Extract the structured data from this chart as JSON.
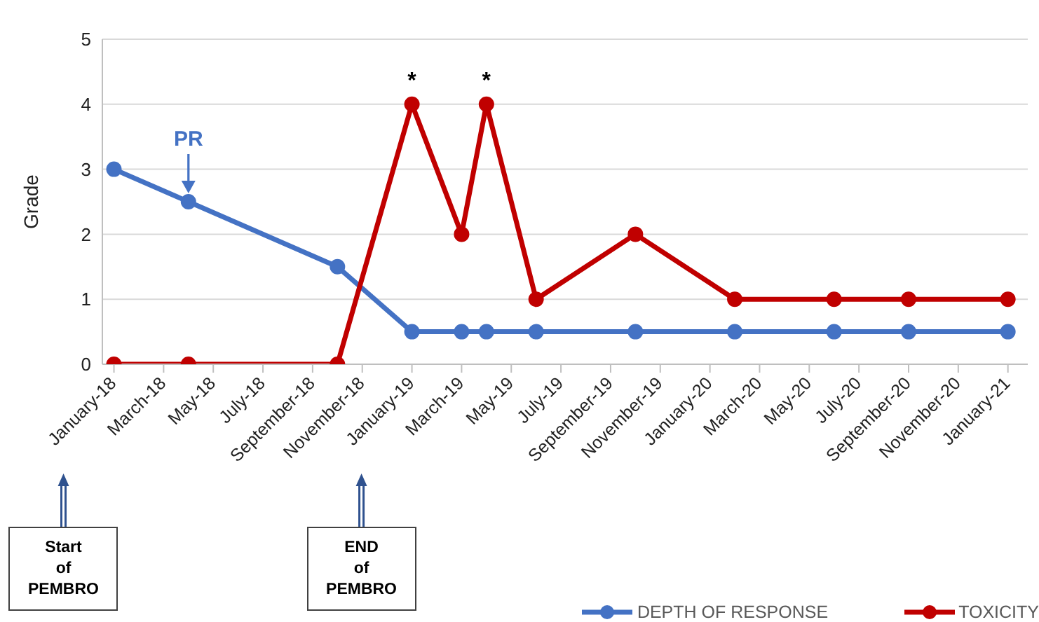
{
  "chart_data": {
    "type": "line",
    "ylabel": "Grade",
    "x": [
      "2018-01",
      "2018-04",
      "2018-10",
      "2019-01",
      "2019-03",
      "2019-04",
      "2019-06",
      "2019-10",
      "2020-02",
      "2020-06",
      "2020-09",
      "2021-01"
    ],
    "series": [
      {
        "name": "DEPTH OF RESPONSE",
        "color": "#4472c4",
        "values": [
          3,
          2.5,
          1.5,
          0.5,
          0.5,
          0.5,
          0.5,
          0.5,
          0.5,
          0.5,
          0.5,
          0.5
        ]
      },
      {
        "name": "TOXICITY",
        "color": "#c00000",
        "values": [
          0,
          0,
          0,
          4,
          2,
          4,
          1,
          2,
          1,
          1,
          1,
          1
        ]
      }
    ],
    "xlim": [
      "2017-12-17",
      "2021-01-25"
    ],
    "xticks": [
      {
        "value": "2018-01",
        "label": "January-18"
      },
      {
        "value": "2018-03",
        "label": "March-18"
      },
      {
        "value": "2018-05",
        "label": "May-18"
      },
      {
        "value": "2018-07",
        "label": "July-18"
      },
      {
        "value": "2018-09",
        "label": "September-18"
      },
      {
        "value": "2018-11",
        "label": "November-18"
      },
      {
        "value": "2019-01",
        "label": "January-19"
      },
      {
        "value": "2019-03",
        "label": "March-19"
      },
      {
        "value": "2019-05",
        "label": "May-19"
      },
      {
        "value": "2019-07",
        "label": "July-19"
      },
      {
        "value": "2019-09",
        "label": "September-19"
      },
      {
        "value": "2019-11",
        "label": "November-19"
      },
      {
        "value": "2020-01",
        "label": "January-20"
      },
      {
        "value": "2020-03",
        "label": "March-20"
      },
      {
        "value": "2020-05",
        "label": "May-20"
      },
      {
        "value": "2020-07",
        "label": "July-20"
      },
      {
        "value": "2020-09",
        "label": "September-20"
      },
      {
        "value": "2020-11",
        "label": "November-20"
      },
      {
        "value": "2021-01",
        "label": "January-21"
      }
    ],
    "ylim": [
      0,
      5
    ],
    "yticks": [
      0,
      1,
      2,
      3,
      4,
      5
    ],
    "grid": "y",
    "legend": "bottom right",
    "marker": "circle",
    "line_style": "solid",
    "annotations": [
      {
        "text": "PR",
        "x": "2018-04",
        "y": 2.5
      },
      {
        "text": "*",
        "x": "2019-01",
        "y": 4
      },
      {
        "text": "*",
        "x": "2019-04",
        "y": 4
      },
      "Start of PEMBRO",
      "END of PEMBRO"
    ]
  }
}
